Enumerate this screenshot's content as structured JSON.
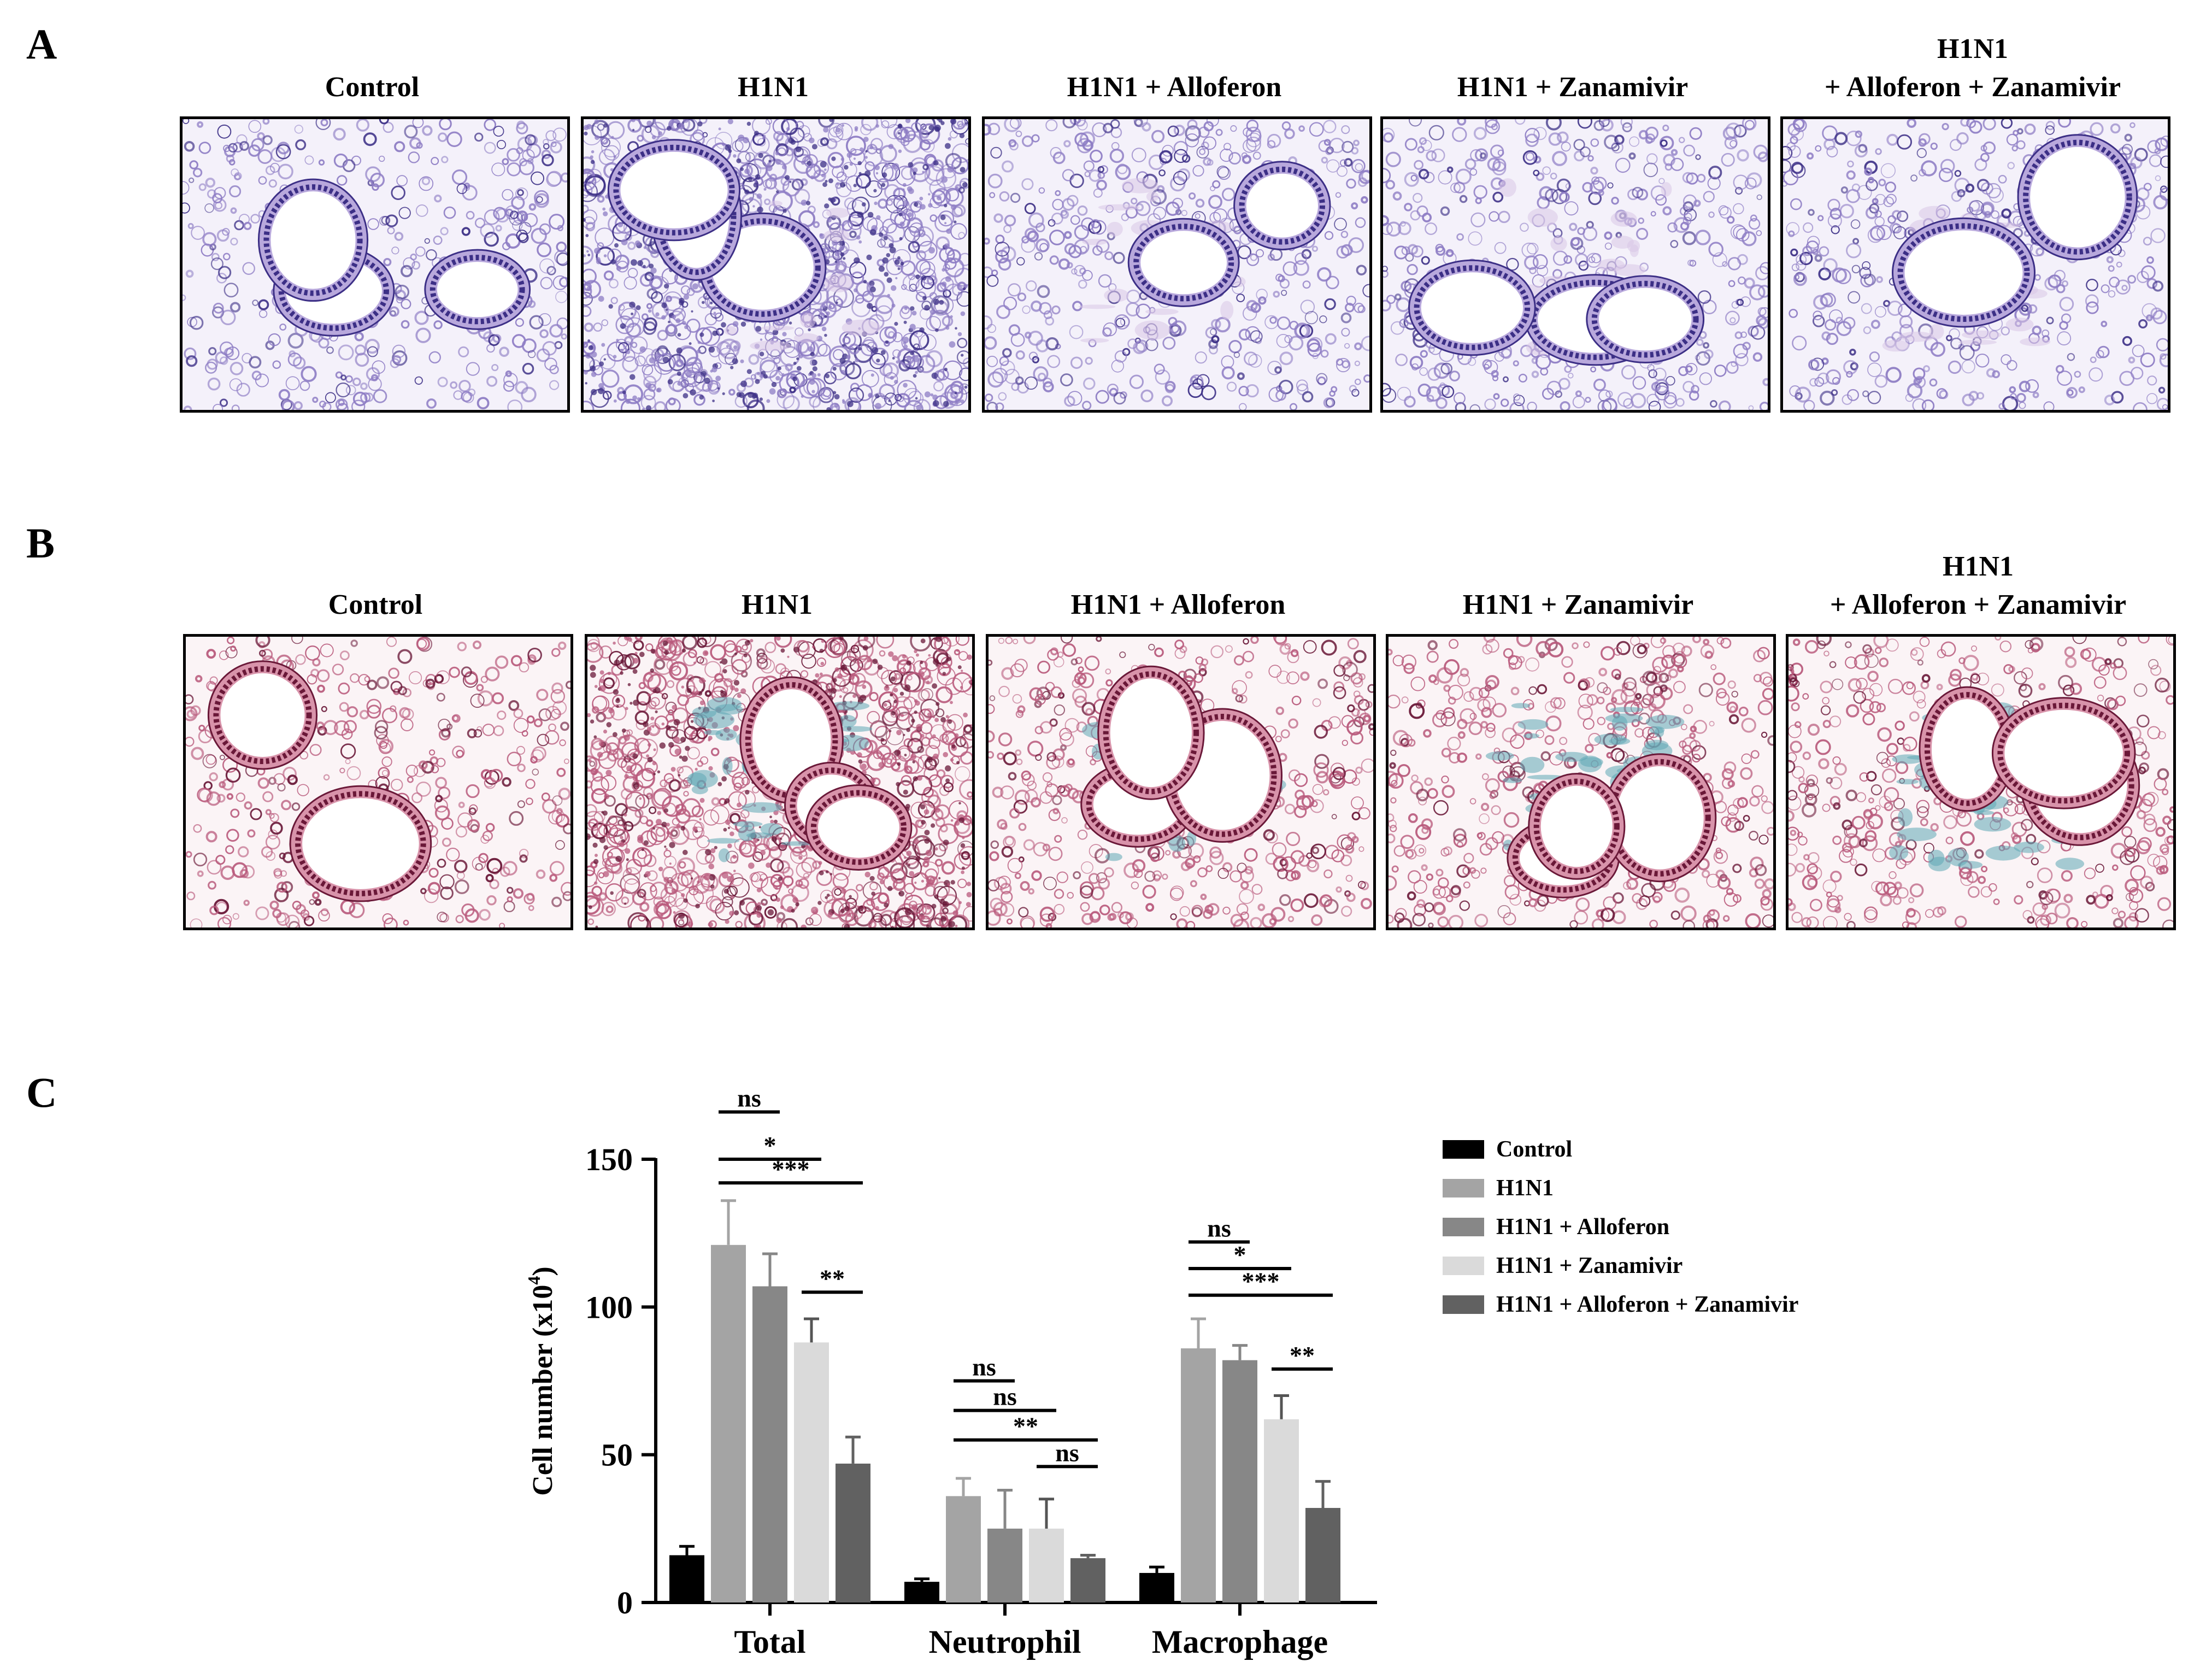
{
  "panels": {
    "a": {
      "letter": "A",
      "images": [
        {
          "label": "Control",
          "label_line2": "",
          "name": "control"
        },
        {
          "label": "H1N1",
          "label_line2": "",
          "name": "h1n1"
        },
        {
          "label": "H1N1 + Alloferon",
          "label_line2": "",
          "name": "h1n1-alloferon"
        },
        {
          "label": "H1N1 + Zanamivir",
          "label_line2": "",
          "name": "h1n1-zanamivir"
        },
        {
          "label": "H1N1",
          "label_line2": "+ Alloferon + Zanamivir",
          "name": "h1n1-alloferon-zanamivir"
        }
      ],
      "stain": "purple"
    },
    "b": {
      "letter": "B",
      "images": [
        {
          "label": "Control",
          "label_line2": "",
          "name": "control"
        },
        {
          "label": "H1N1",
          "label_line2": "",
          "name": "h1n1"
        },
        {
          "label": "H1N1 + Alloferon",
          "label_line2": "",
          "name": "h1n1-alloferon"
        },
        {
          "label": "H1N1 + Zanamivir",
          "label_line2": "",
          "name": "h1n1-zanamivir"
        },
        {
          "label": "H1N1",
          "label_line2": "+ Alloferon + Zanamivir",
          "name": "h1n1-alloferon-zanamivir"
        }
      ],
      "stain": "trichrome"
    },
    "c": {
      "letter": "C"
    }
  },
  "chart_data": {
    "type": "bar",
    "ylabel": "Cell number (x10",
    "ylabel_sup": "4",
    "ylabel_close": ")",
    "ylim": [
      0,
      150
    ],
    "yticks": [
      0,
      50,
      100,
      150
    ],
    "categories": [
      "Total",
      "Neutrophil",
      "Macrophage"
    ],
    "series": [
      {
        "name": "Control",
        "color": "#000000",
        "values": [
          16,
          7,
          10
        ],
        "errors": [
          3,
          1,
          2
        ]
      },
      {
        "name": "H1N1",
        "color": "#a4a4a4",
        "values": [
          121,
          36,
          86
        ],
        "errors": [
          15,
          6,
          10
        ]
      },
      {
        "name": "H1N1 + Alloferon",
        "color": "#878787",
        "values": [
          107,
          25,
          82
        ],
        "errors": [
          11,
          13,
          5
        ]
      },
      {
        "name": "H1N1 + Zanamivir",
        "color": "#dadada",
        "values": [
          88,
          25,
          62
        ],
        "errors": [
          8,
          10,
          8
        ]
      },
      {
        "name": "H1N1 + Alloferon + Zanamivir",
        "color": "#616161",
        "values": [
          47,
          15,
          32
        ],
        "errors": [
          9,
          1,
          9
        ]
      }
    ],
    "legend_position": "right",
    "significance": [
      {
        "category": 0,
        "from_series": 1,
        "to_series": 2,
        "label": "ns",
        "level": 166
      },
      {
        "category": 0,
        "from_series": 1,
        "to_series": 3,
        "label": "*",
        "level": 150
      },
      {
        "category": 0,
        "from_series": 1,
        "to_series": 4,
        "label": "***",
        "level": 142
      },
      {
        "category": 0,
        "from_series": 3,
        "to_series": 4,
        "label": "**",
        "level": 105
      },
      {
        "category": 1,
        "from_series": 1,
        "to_series": 2,
        "label": "ns",
        "level": 75
      },
      {
        "category": 1,
        "from_series": 1,
        "to_series": 3,
        "label": "ns",
        "level": 65
      },
      {
        "category": 1,
        "from_series": 1,
        "to_series": 4,
        "label": "**",
        "level": 55
      },
      {
        "category": 1,
        "from_series": 3,
        "to_series": 4,
        "label": "ns",
        "level": 46
      },
      {
        "category": 2,
        "from_series": 1,
        "to_series": 2,
        "label": "ns",
        "level": 122
      },
      {
        "category": 2,
        "from_series": 1,
        "to_series": 3,
        "label": "*",
        "level": 113
      },
      {
        "category": 2,
        "from_series": 1,
        "to_series": 4,
        "label": "***",
        "level": 104
      },
      {
        "category": 2,
        "from_series": 3,
        "to_series": 4,
        "label": "**",
        "level": 79
      }
    ]
  }
}
